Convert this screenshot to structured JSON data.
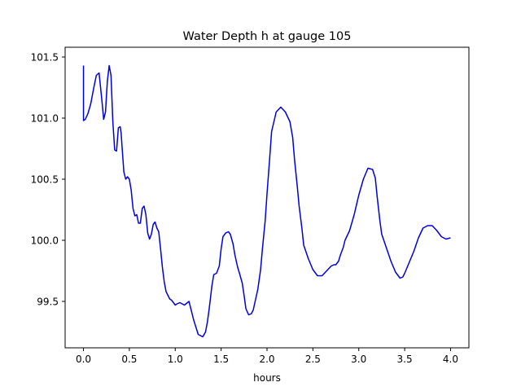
{
  "chart_data": {
    "type": "line",
    "title": "Water Depth h at gauge 105",
    "xlabel": "hours",
    "ylabel": "",
    "xlim": [
      -0.2,
      4.2
    ],
    "ylim": [
      99.12,
      101.58
    ],
    "xticks": [
      0.0,
      0.5,
      1.0,
      1.5,
      2.0,
      2.5,
      3.0,
      3.5,
      4.0
    ],
    "xtick_labels": [
      "0.0",
      "0.5",
      "1.0",
      "1.5",
      "2.0",
      "2.5",
      "3.0",
      "3.5",
      "4.0"
    ],
    "yticks": [
      99.5,
      100.0,
      100.5,
      101.0,
      101.5
    ],
    "ytick_labels": [
      "99.5",
      "100.0",
      "100.5",
      "101.0",
      "101.5"
    ],
    "grid": false,
    "series": [
      {
        "color": "#0000dd",
        "x": [
          0.0,
          0.0,
          0.02,
          0.05,
          0.08,
          0.11,
          0.14,
          0.17,
          0.2,
          0.22,
          0.24,
          0.26,
          0.28,
          0.3,
          0.32,
          0.34,
          0.36,
          0.37,
          0.38,
          0.4,
          0.41,
          0.42,
          0.44,
          0.46,
          0.48,
          0.5,
          0.52,
          0.54,
          0.56,
          0.58,
          0.6,
          0.62,
          0.64,
          0.66,
          0.68,
          0.7,
          0.72,
          0.74,
          0.76,
          0.78,
          0.8,
          0.82,
          0.84,
          0.86,
          0.88,
          0.9,
          0.92,
          0.94,
          0.96,
          0.98,
          1.0,
          1.02,
          1.05,
          1.1,
          1.15,
          1.2,
          1.25,
          1.3,
          1.33,
          1.35,
          1.37,
          1.4,
          1.42,
          1.45,
          1.48,
          1.5,
          1.52,
          1.55,
          1.58,
          1.6,
          1.63,
          1.65,
          1.68,
          1.7,
          1.73,
          1.75,
          1.77,
          1.8,
          1.83,
          1.85,
          1.9,
          1.93,
          1.95,
          1.98,
          2.0,
          2.03,
          2.05,
          2.1,
          2.15,
          2.2,
          2.25,
          2.28,
          2.3,
          2.33,
          2.35,
          2.38,
          2.4,
          2.45,
          2.5,
          2.55,
          2.6,
          2.65,
          2.7,
          2.73,
          2.75,
          2.78,
          2.8,
          2.83,
          2.85,
          2.9,
          2.95,
          3.0,
          3.05,
          3.1,
          3.15,
          3.18,
          3.2,
          3.23,
          3.25,
          3.3,
          3.35,
          3.4,
          3.45,
          3.48,
          3.5,
          3.55,
          3.6,
          3.65,
          3.7,
          3.75,
          3.8,
          3.85,
          3.9,
          3.95,
          4.0
        ],
        "y": [
          101.43,
          100.98,
          100.99,
          101.04,
          101.12,
          101.24,
          101.35,
          101.37,
          101.15,
          100.99,
          101.05,
          101.3,
          101.43,
          101.35,
          100.97,
          100.74,
          100.73,
          100.82,
          100.92,
          100.93,
          100.88,
          100.77,
          100.56,
          100.5,
          100.52,
          100.5,
          100.41,
          100.26,
          100.2,
          100.21,
          100.14,
          100.14,
          100.26,
          100.28,
          100.21,
          100.06,
          100.01,
          100.05,
          100.13,
          100.15,
          100.1,
          100.07,
          99.93,
          99.78,
          99.66,
          99.58,
          99.55,
          99.52,
          99.51,
          99.49,
          99.47,
          99.48,
          99.49,
          99.47,
          99.5,
          99.35,
          99.23,
          99.21,
          99.25,
          99.33,
          99.44,
          99.63,
          99.72,
          99.73,
          99.79,
          99.93,
          100.03,
          100.06,
          100.07,
          100.05,
          99.97,
          99.88,
          99.78,
          99.73,
          99.65,
          99.55,
          99.44,
          99.39,
          99.4,
          99.43,
          99.6,
          99.76,
          99.93,
          100.16,
          100.38,
          100.68,
          100.89,
          101.05,
          101.09,
          101.05,
          100.97,
          100.84,
          100.66,
          100.44,
          100.28,
          100.1,
          99.96,
          99.85,
          99.76,
          99.71,
          99.71,
          99.75,
          99.79,
          99.8,
          99.8,
          99.83,
          99.88,
          99.94,
          100.0,
          100.08,
          100.21,
          100.37,
          100.5,
          100.59,
          100.58,
          100.51,
          100.36,
          100.16,
          100.05,
          99.94,
          99.83,
          99.74,
          99.69,
          99.7,
          99.73,
          99.82,
          99.91,
          100.02,
          100.1,
          100.12,
          100.12,
          100.08,
          100.03,
          100.01,
          100.02
        ]
      }
    ]
  }
}
